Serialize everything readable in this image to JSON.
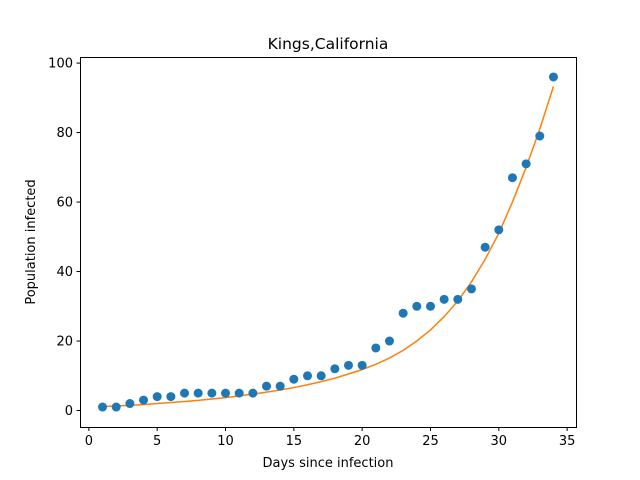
{
  "chart_data": {
    "type": "scatter",
    "title": "Kings,California",
    "xlabel": "Days since infection",
    "ylabel": "Population infected",
    "xlim": [
      -0.65,
      35.65
    ],
    "ylim": [
      -4.75,
      101.75
    ],
    "xticks": [
      0,
      5,
      10,
      15,
      20,
      25,
      30,
      35
    ],
    "yticks": [
      0,
      20,
      40,
      60,
      80,
      100
    ],
    "grid": false,
    "legend": "none",
    "series": [
      {
        "kind": "scatter",
        "color": "#1f77b4",
        "x": [
          1,
          2,
          3,
          4,
          5,
          6,
          7,
          8,
          9,
          10,
          11,
          12,
          13,
          14,
          15,
          16,
          17,
          18,
          19,
          20,
          21,
          22,
          23,
          24,
          25,
          26,
          27,
          28,
          29,
          30,
          31,
          32,
          33,
          34
        ],
        "y": [
          1,
          1,
          2,
          3,
          4,
          4,
          5,
          5,
          5,
          5,
          5,
          5,
          7,
          7,
          9,
          10,
          10,
          12,
          13,
          13,
          18,
          20,
          28,
          30,
          30,
          32,
          32,
          35,
          47,
          52,
          67,
          71,
          79,
          96
        ]
      },
      {
        "kind": "line",
        "color": "#ff7f0e",
        "x": [
          1,
          2,
          3,
          4,
          5,
          6,
          7,
          8,
          9,
          10,
          11,
          12,
          13,
          14,
          15,
          16,
          17,
          18,
          19,
          20,
          21,
          22,
          23,
          24,
          25,
          26,
          27,
          28,
          29,
          30,
          31,
          32,
          33,
          34
        ],
        "y": [
          1.1,
          1.3,
          1.5,
          1.7,
          2.0,
          2.3,
          2.6,
          2.9,
          3.3,
          3.7,
          4.2,
          4.7,
          5.3,
          5.9,
          6.6,
          7.4,
          8.3,
          9.3,
          10.5,
          11.8,
          13.3,
          15.1,
          17.3,
          20.0,
          23.2,
          27.0,
          31.5,
          37.0,
          43.5,
          51.0,
          60.0,
          70.0,
          81.0,
          93.3
        ]
      }
    ]
  }
}
